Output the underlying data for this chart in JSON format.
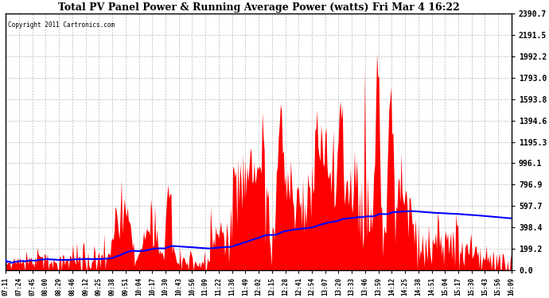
{
  "title": "Total PV Panel Power & Running Average Power (watts) Fri Mar 4 16:22",
  "copyright": "Copyright 2011 Cartronics.com",
  "background_color": "#ffffff",
  "plot_bg_color": "#ffffff",
  "title_color": "#000000",
  "grid_color": "#bbbbbb",
  "area_color": "#ff0000",
  "line_color": "#0000ff",
  "ytick_labels": [
    "0.0",
    "199.2",
    "398.4",
    "597.7",
    "796.9",
    "996.1",
    "1195.3",
    "1394.6",
    "1593.8",
    "1793.0",
    "1992.2",
    "2191.5",
    "2390.7"
  ],
  "ytick_values": [
    0.0,
    199.2,
    398.4,
    597.7,
    796.9,
    996.1,
    1195.3,
    1394.6,
    1593.8,
    1793.0,
    1992.2,
    2191.5,
    2390.7
  ],
  "ymax": 2390.7,
  "xtick_labels": [
    "07:11",
    "07:24",
    "07:45",
    "08:00",
    "08:29",
    "08:46",
    "09:12",
    "09:25",
    "09:38",
    "09:51",
    "10:04",
    "10:17",
    "10:30",
    "10:43",
    "10:56",
    "11:09",
    "11:22",
    "11:36",
    "11:49",
    "12:02",
    "12:15",
    "12:28",
    "12:41",
    "12:54",
    "13:07",
    "13:20",
    "13:33",
    "13:46",
    "13:59",
    "14:12",
    "14:25",
    "14:38",
    "14:51",
    "15:04",
    "15:17",
    "15:30",
    "15:43",
    "15:56",
    "16:09"
  ],
  "figsize": [
    6.9,
    3.75
  ],
  "dpi": 100
}
